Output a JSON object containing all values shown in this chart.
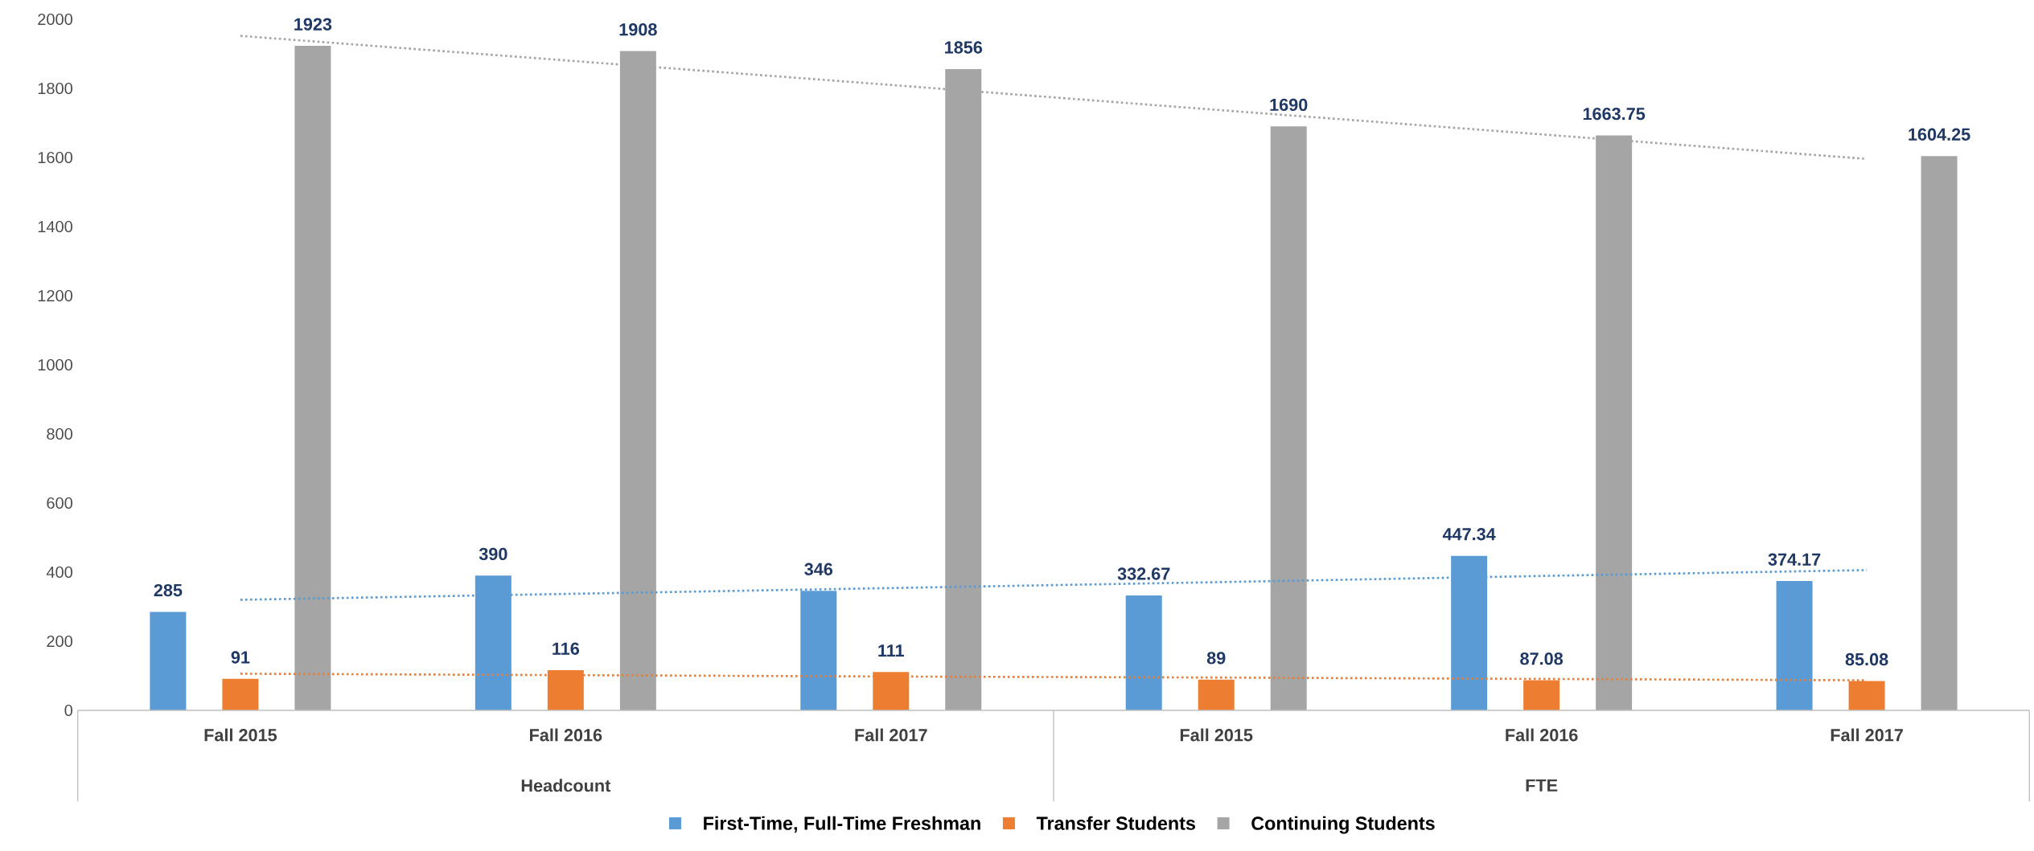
{
  "chart_data": {
    "type": "bar",
    "categories": [
      "Fall 2015",
      "Fall 2016",
      "Fall 2017",
      "Fall 2015",
      "Fall 2016",
      "Fall 2017"
    ],
    "series": [
      {
        "name": "First-Time, Full-Time Freshman",
        "color": "#5b9bd5",
        "values": [
          285,
          390,
          346,
          332.67,
          447.34,
          374.17
        ],
        "value_labels": [
          "285",
          "390",
          "346",
          "332.67",
          "447.34",
          "374.17"
        ]
      },
      {
        "name": "Transfer Students",
        "color": "#ed7d31",
        "values": [
          91,
          116,
          111,
          89,
          87.08,
          85.08
        ],
        "value_labels": [
          "91",
          "116",
          "111",
          "89",
          "87.08",
          "85.08"
        ]
      },
      {
        "name": "Continuing Students",
        "color": "#a5a5a5",
        "values": [
          1923,
          1908,
          1856,
          1690,
          1663.75,
          1604.25
        ],
        "value_labels": [
          "1923",
          "1908",
          "1856",
          "1690",
          "1663.75",
          "1604.25"
        ]
      },
      {
        "type": "line",
        "line_style": "dotted",
        "color": "#5b9bd5",
        "values": [
          320,
          337,
          354,
          371,
          389,
          406
        ]
      },
      {
        "type": "line",
        "line_style": "dotted",
        "color": "#ed7d31",
        "values": [
          106,
          102,
          98,
          95,
          91,
          87
        ]
      },
      {
        "type": "line",
        "line_style": "dotted",
        "color": "#a5a5a5",
        "values": [
          1952,
          1881,
          1810,
          1738,
          1667,
          1596
        ]
      }
    ],
    "annotations": [
      "Headcount",
      "FTE"
    ],
    "ylim": [
      0,
      2000
    ],
    "yticks": [
      0,
      200,
      400,
      600,
      800,
      1000,
      1200,
      1400,
      1600,
      1800,
      2000
    ],
    "legend": "bottom"
  }
}
